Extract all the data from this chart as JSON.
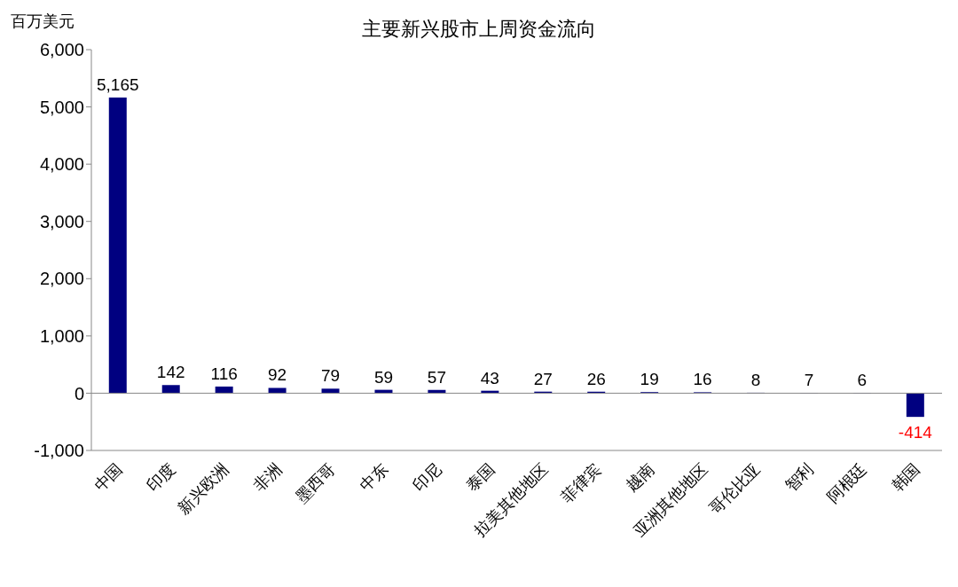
{
  "chart_data": {
    "type": "bar",
    "title": "主要新兴股市上周资金流向",
    "ylabel": "百万美元",
    "categories": [
      "中国",
      "印度",
      "新兴欧洲",
      "非洲",
      "墨西哥",
      "中东",
      "印尼",
      "泰国",
      "拉美其他地区",
      "菲律宾",
      "越南",
      "亚洲其他地区",
      "哥伦比亚",
      "智利",
      "阿根廷",
      "韩国"
    ],
    "values": [
      5165,
      142,
      116,
      92,
      79,
      59,
      57,
      43,
      27,
      26,
      19,
      16,
      8,
      7,
      6,
      -414
    ],
    "value_labels": [
      "5,165",
      "142",
      "116",
      "92",
      "79",
      "59",
      "57",
      "43",
      "27",
      "26",
      "19",
      "16",
      "8",
      "7",
      "6",
      "-414"
    ],
    "color": "#000080",
    "ylim": [
      -1000,
      6000
    ],
    "yticks": [
      {
        "value": -1000,
        "label": "-1,000"
      },
      0,
      {
        "value": 1000,
        "label": "1,000"
      },
      {
        "value": 2000,
        "label": "2,000"
      },
      {
        "value": 3000,
        "label": "3,000"
      },
      {
        "value": 4000,
        "label": "4,000"
      },
      {
        "value": 5000,
        "label": "5,000"
      },
      {
        "value": 6000,
        "label": "6,000"
      }
    ],
    "legend": false
  }
}
